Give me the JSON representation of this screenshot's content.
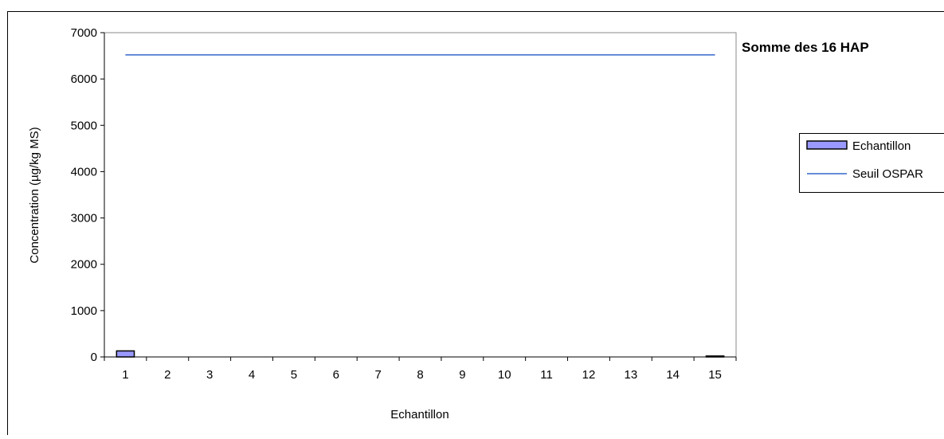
{
  "chart_data": {
    "type": "bar",
    "title": "Somme des 16 HAP",
    "xlabel": "Echantillon",
    "ylabel": "Concentration (µg/kg MS)",
    "categories": [
      "1",
      "2",
      "3",
      "4",
      "5",
      "6",
      "7",
      "8",
      "9",
      "10",
      "11",
      "12",
      "13",
      "14",
      "15"
    ],
    "ylim": [
      0,
      7000
    ],
    "yticks": [
      0,
      1000,
      2000,
      3000,
      4000,
      5000,
      6000,
      7000
    ],
    "grid": false,
    "legend_position": "right",
    "series": [
      {
        "name": "Echantillon",
        "kind": "bar",
        "color": "#9999ff",
        "values": [
          130,
          0,
          0,
          0,
          0,
          0,
          0,
          0,
          0,
          0,
          0,
          0,
          0,
          0,
          20
        ]
      },
      {
        "name": "Seuil OSPAR",
        "kind": "line",
        "color": "#3366cc",
        "values": [
          6520,
          6520,
          6520,
          6520,
          6520,
          6520,
          6520,
          6520,
          6520,
          6520,
          6520,
          6520,
          6520,
          6520,
          6520
        ]
      }
    ]
  }
}
